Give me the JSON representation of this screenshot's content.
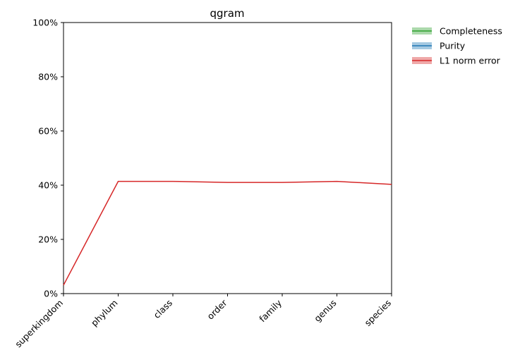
{
  "chart_data": {
    "type": "line",
    "title": "qgram",
    "categories": [
      "superkingdom",
      "phylum",
      "class",
      "order",
      "family",
      "genus",
      "species"
    ],
    "series": [
      {
        "name": "Completeness",
        "color": "#2ca02c",
        "values": [
          null,
          null,
          null,
          null,
          null,
          null,
          null
        ]
      },
      {
        "name": "Purity",
        "color": "#1f77b4",
        "values": [
          null,
          null,
          null,
          null,
          null,
          null,
          null
        ]
      },
      {
        "name": "L1 norm error",
        "color": "#d62728",
        "values": [
          3.1,
          41.4,
          41.4,
          41.0,
          41.0,
          41.4,
          40.3
        ]
      }
    ],
    "ylim": [
      0,
      100
    ],
    "yticks": [
      {
        "value": 0,
        "label": "0%"
      },
      {
        "value": 20,
        "label": "20%"
      },
      {
        "value": 40,
        "label": "40%"
      },
      {
        "value": 60,
        "label": "60%"
      },
      {
        "value": 80,
        "label": "80%"
      },
      {
        "value": 100,
        "label": "100%"
      }
    ],
    "grid": false,
    "legend": "outside upper right"
  }
}
